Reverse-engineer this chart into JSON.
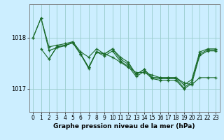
{
  "bg_color": "#cceeff",
  "plot_bg_color": "#cceeff",
  "grid_color": "#99cccc",
  "line_color": "#1a6b2a",
  "xlabel": "Graphe pression niveau de la mer (hPa)",
  "ylim": [
    1016.55,
    1018.65
  ],
  "xlim": [
    -0.5,
    23.5
  ],
  "yticks": [
    1017.0,
    1018.0
  ],
  "xlabel_fontsize": 6.5,
  "tick_fontsize": 5.5,
  "series": [
    {
      "x": [
        0,
        1,
        2,
        3,
        4,
        5,
        6,
        7,
        8,
        9,
        10,
        11,
        12,
        13,
        14,
        15,
        16,
        17,
        18,
        19,
        20,
        21,
        22,
        23
      ],
      "y": [
        1018.0,
        1018.38,
        1017.82,
        1017.85,
        1017.88,
        1017.92,
        1017.72,
        1017.62,
        1017.78,
        1017.68,
        1017.62,
        1017.52,
        1017.42,
        1017.32,
        1017.32,
        1017.27,
        1017.22,
        1017.22,
        1017.22,
        1017.12,
        1017.08,
        1017.22,
        1017.22,
        1017.22
      ]
    },
    {
      "x": [
        1,
        2,
        3,
        4,
        5,
        6,
        7,
        8,
        9,
        10,
        11,
        12,
        13,
        14,
        15,
        16,
        17,
        18,
        19,
        20,
        21,
        22,
        23
      ],
      "y": [
        1017.78,
        1017.58,
        1017.82,
        1017.85,
        1017.9,
        1017.68,
        1017.42,
        1017.72,
        1017.68,
        1017.78,
        1017.62,
        1017.52,
        1017.28,
        1017.38,
        1017.22,
        1017.22,
        1017.22,
        1017.22,
        1017.08,
        1017.18,
        1017.72,
        1017.78,
        1017.78
      ]
    },
    {
      "x": [
        2,
        3,
        4,
        5,
        6,
        7,
        8,
        9,
        10,
        11,
        12,
        13,
        14,
        15,
        16,
        17,
        18,
        19,
        20,
        21,
        22,
        23
      ],
      "y": [
        1017.58,
        1017.82,
        1017.85,
        1017.9,
        1017.68,
        1017.42,
        1017.72,
        1017.68,
        1017.78,
        1017.58,
        1017.48,
        1017.28,
        1017.38,
        1017.22,
        1017.2,
        1017.2,
        1017.2,
        1017.02,
        1017.14,
        1017.68,
        1017.76,
        1017.76
      ]
    },
    {
      "x": [
        0,
        1,
        2,
        3,
        4,
        5,
        6,
        7,
        8,
        9,
        10,
        11,
        12,
        13,
        14,
        15,
        16,
        17,
        18,
        19,
        20,
        21,
        22,
        23
      ],
      "y": [
        1018.0,
        1018.38,
        1017.75,
        1017.8,
        1017.84,
        1017.9,
        1017.67,
        1017.4,
        1017.72,
        1017.64,
        1017.74,
        1017.54,
        1017.44,
        1017.24,
        1017.34,
        1017.2,
        1017.17,
        1017.17,
        1017.17,
        1017.0,
        1017.1,
        1017.65,
        1017.74,
        1017.74
      ]
    }
  ]
}
